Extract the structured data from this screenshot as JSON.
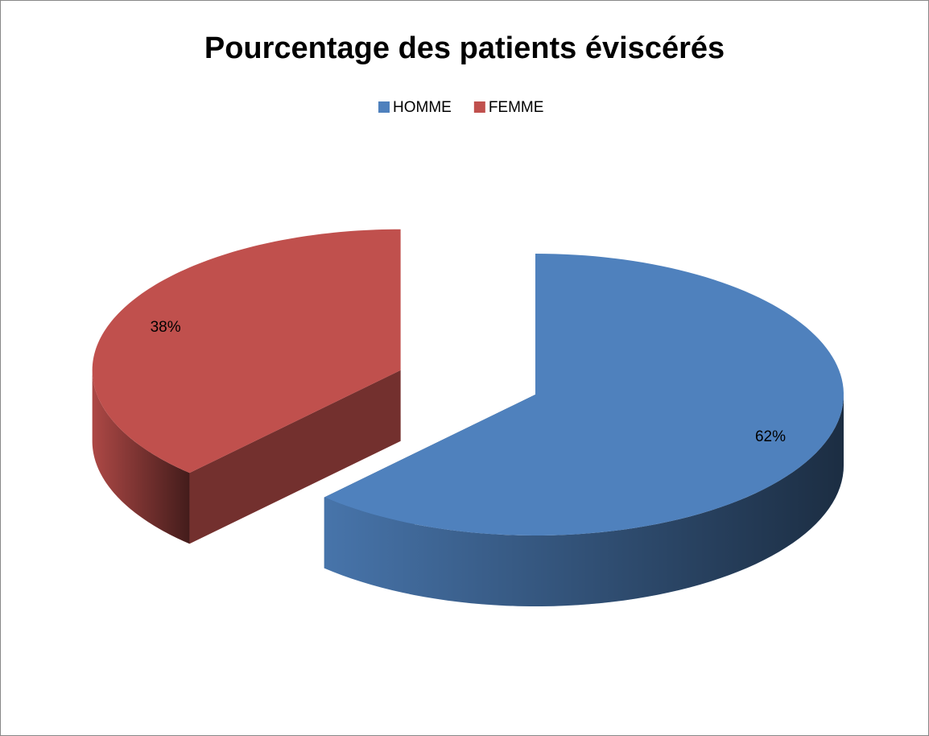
{
  "chart_data": {
    "type": "pie3d",
    "title": "Pourcentage des patients éviscérés",
    "categories": [
      "HOMME",
      "FEMME"
    ],
    "values": [
      62,
      38
    ],
    "value_labels": [
      "62%",
      "38%"
    ],
    "colors": [
      "#4f81bd",
      "#c0504d"
    ],
    "legend": "top"
  }
}
